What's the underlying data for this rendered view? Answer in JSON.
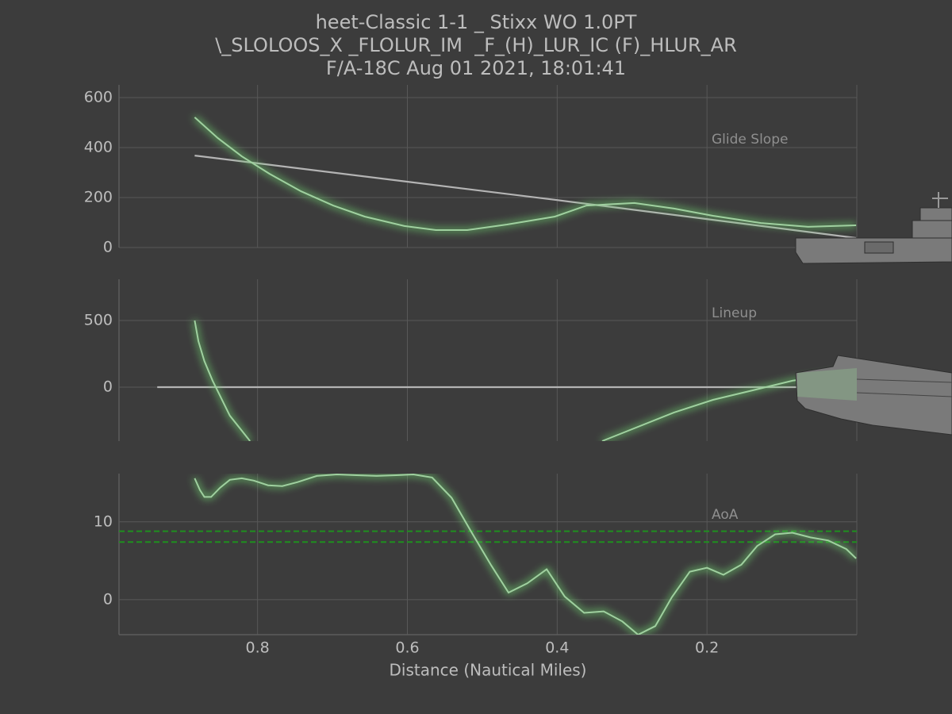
{
  "title": [
    "heet-Classic 1-1 _ Stixx WO 1.0PT",
    "\\_SLOLOOS_X _FLOLUR_IM  _F_(H)_LUR_IC (F)_HLUR_AR",
    "F/A-18C Aug 01 2021, 18:01:41"
  ],
  "x_label": "Distance (Nautical Miles)",
  "chart_data": [
    {
      "type": "line",
      "annotation": "Glide Slope",
      "xlim": [
        0.985,
        0.0
      ],
      "xticks": [
        0.8,
        0.6,
        0.4,
        0.2
      ],
      "ylim": [
        0,
        651
      ],
      "yticks": [
        0,
        200,
        400,
        600
      ],
      "grid": true,
      "series": [
        {
          "color": "#b4b4b4",
          "glow": false,
          "x": [
            0.884,
            0.4,
            0.001
          ],
          "values": [
            368,
            190,
            38
          ]
        },
        {
          "color": "#9fd09f",
          "glow": true,
          "x": [
            0.884,
            0.853,
            0.821,
            0.784,
            0.742,
            0.699,
            0.657,
            0.604,
            0.562,
            0.52,
            0.467,
            0.403,
            0.361,
            0.297,
            0.244,
            0.192,
            0.128,
            0.065,
            0.001
          ],
          "values": [
            521,
            438,
            365,
            295,
            225,
            168,
            124,
            86,
            70,
            70,
            92,
            124,
            168,
            178,
            156,
            127,
            98,
            83,
            89
          ]
        }
      ]
    },
    {
      "type": "line",
      "annotation": "Lineup",
      "xlim": [
        0.985,
        0.0
      ],
      "xticks": [
        0.8,
        0.6,
        0.4,
        0.2
      ],
      "ylim": [
        -405,
        810
      ],
      "yticks": [
        0,
        500
      ],
      "grid": true,
      "series": [
        {
          "color": "#b4b4b4",
          "glow": false,
          "x": [
            0.934,
            0.001
          ],
          "values": [
            0,
            0
          ]
        },
        {
          "color": "#9fd09f",
          "glow": true,
          "x": [
            0.884,
            0.879,
            0.871,
            0.86,
            0.837,
            0.821,
            0.81,
            0.6,
            0.34,
            0.244,
            0.192,
            0.139,
            0.086,
            0.001
          ],
          "values": [
            500,
            345,
            196,
            48,
            -214,
            -327,
            -405,
            null,
            -405,
            -190,
            -95,
            -24,
            48,
            119
          ]
        }
      ]
    },
    {
      "type": "line",
      "annotation": "AoA",
      "xlim": [
        0.985,
        0.0
      ],
      "xticks": [
        0.8,
        0.6,
        0.4,
        0.2
      ],
      "ylim": [
        -4.5,
        16.2
      ],
      "yticks": [
        0,
        10
      ],
      "grid": true,
      "hlines": [
        {
          "value": 8.8,
          "color": "#1f8f1f",
          "style": "dashed"
        },
        {
          "value": 7.4,
          "color": "#1f8f1f",
          "style": "dashed"
        }
      ],
      "series": [
        {
          "color": "#9fd09f",
          "glow": true,
          "x": [
            0.884,
            0.877,
            0.871,
            0.862,
            0.85,
            0.837,
            0.821,
            0.805,
            0.786,
            0.767,
            0.747,
            0.721,
            0.694,
            0.668,
            0.641,
            0.615,
            0.592,
            0.567,
            0.541,
            0.514,
            0.488,
            0.465,
            0.44,
            0.414,
            0.39,
            0.364,
            0.338,
            0.313,
            0.292,
            0.269,
            0.247,
            0.223,
            0.2,
            0.178,
            0.154,
            0.133,
            0.109,
            0.086,
            0.062,
            0.038,
            0.014,
            0.001
          ],
          "values": [
            15.6,
            14.1,
            13.2,
            13.2,
            14.4,
            15.4,
            15.6,
            15.3,
            14.7,
            14.6,
            15.1,
            15.9,
            16.1,
            16.0,
            15.9,
            16.0,
            16.1,
            15.7,
            13.1,
            8.6,
            4.4,
            0.9,
            2.1,
            3.9,
            0.4,
            -1.7,
            -1.5,
            -2.8,
            -4.5,
            -3.4,
            0.3,
            3.6,
            4.1,
            3.2,
            4.5,
            6.9,
            8.4,
            8.6,
            8.0,
            7.6,
            6.5,
            5.3
          ]
        }
      ]
    }
  ]
}
